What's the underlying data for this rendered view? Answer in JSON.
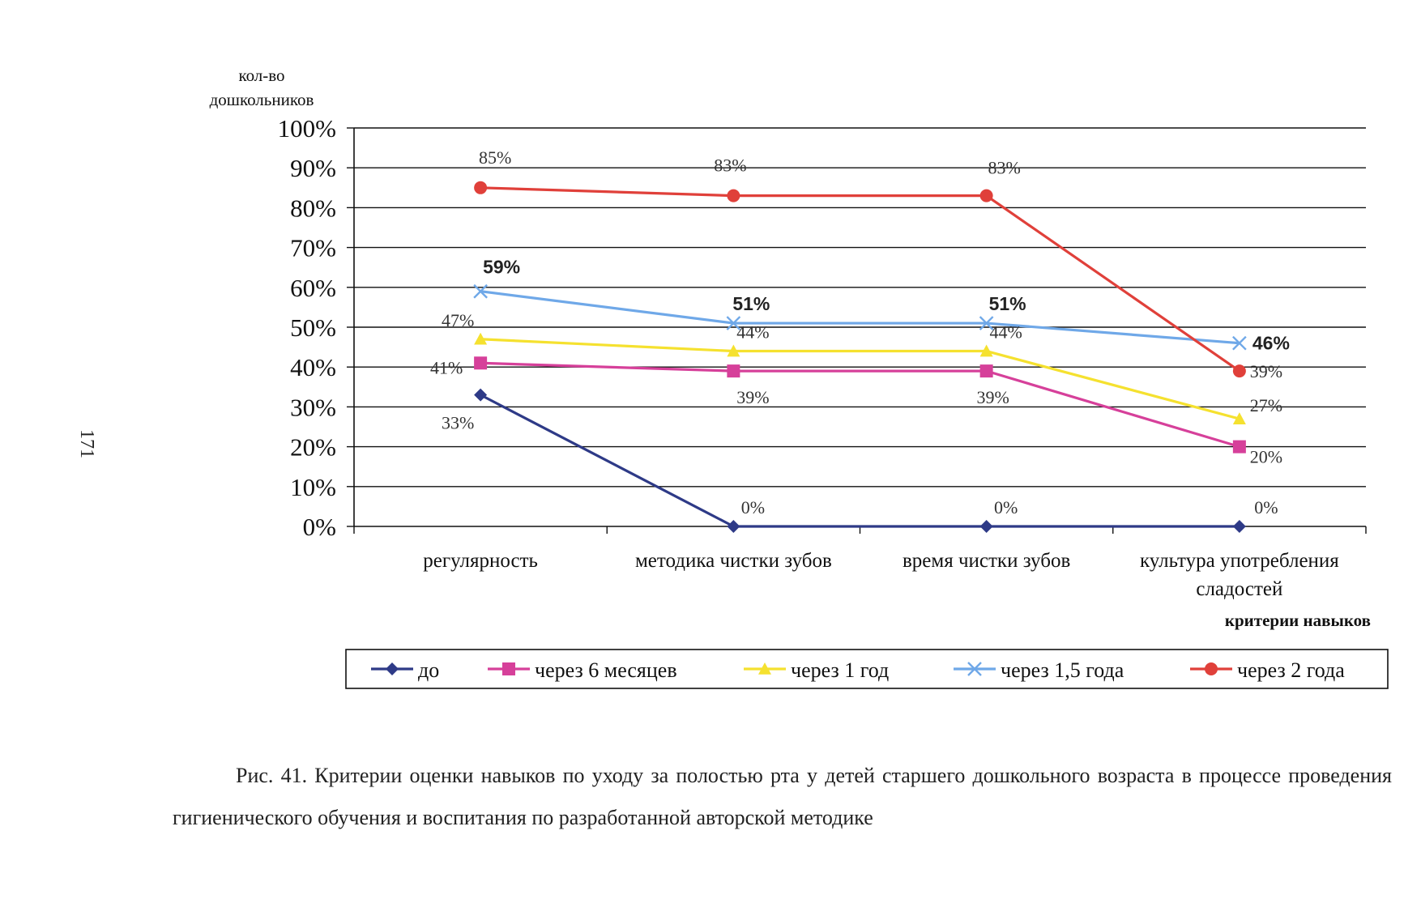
{
  "page_number": "171",
  "caption": "Рис. 41. Критерии оценки навыков по уходу за полостью рта у детей старшего дошкольного возраста в процессе проведения гигиенического обучения и воспитания по разработанной авторской методике",
  "chart_data": {
    "type": "line",
    "ylabel": [
      "кол-во",
      "дошкольников"
    ],
    "xlabel": "критерии навыков",
    "ylim": [
      0,
      100
    ],
    "yticks": [
      "0%",
      "10%",
      "20%",
      "30%",
      "40%",
      "50%",
      "60%",
      "70%",
      "80%",
      "90%",
      "100%"
    ],
    "categories": [
      [
        "регулярность"
      ],
      [
        "методика чистки зубов"
      ],
      [
        "время чистки зубов"
      ],
      [
        "культура употребления",
        "сладостей"
      ]
    ],
    "grid": true,
    "legend": "bottom",
    "series": [
      {
        "name": "до",
        "values": [
          33,
          0,
          0,
          0
        ],
        "labels": [
          "33%",
          "0%",
          "0%",
          "0%"
        ],
        "color": "#2e3a87",
        "marker": "diamond"
      },
      {
        "name": "через 6 месяцев",
        "values": [
          41,
          39,
          39,
          20
        ],
        "labels": [
          "41%",
          "39%",
          "39%",
          "20%"
        ],
        "color": "#d6409a",
        "marker": "square"
      },
      {
        "name": "через 1 год",
        "values": [
          47,
          44,
          44,
          27
        ],
        "labels": [
          "47%",
          "44%",
          "44%",
          "27%"
        ],
        "color": "#f5e12f",
        "marker": "triangle"
      },
      {
        "name": "через 1,5 года",
        "values": [
          59,
          51,
          51,
          46
        ],
        "labels": [
          "59%",
          "51%",
          "51%",
          "46%"
        ],
        "color": "#6fa8e8",
        "marker": "x"
      },
      {
        "name": "через 2 года",
        "values": [
          85,
          83,
          83,
          39
        ],
        "labels": [
          "85%",
          "83%",
          "83%",
          "39%"
        ],
        "color": "#e0403a",
        "marker": "circle"
      }
    ]
  }
}
